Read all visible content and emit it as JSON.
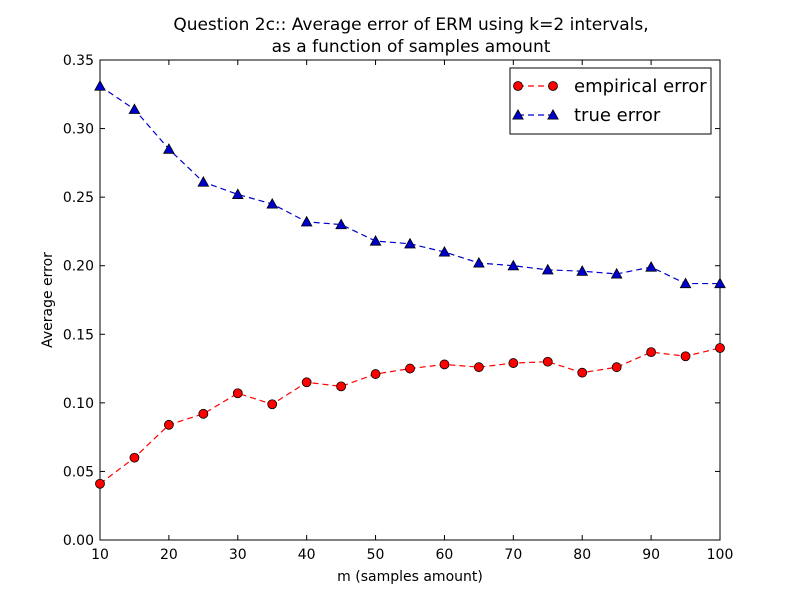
{
  "chart_data": {
    "type": "line",
    "title": [
      "Question 2c:: Average error of ERM using k=2 intervals,",
      "as a function of samples amount"
    ],
    "xlabel": "m (samples amount)",
    "ylabel": "Average error",
    "xlim": [
      10,
      100
    ],
    "ylim": [
      0.0,
      0.35
    ],
    "xticks": [
      10,
      20,
      30,
      40,
      50,
      60,
      70,
      80,
      90,
      100
    ],
    "xtick_labels": [
      "10",
      "20",
      "30",
      "40",
      "50",
      "60",
      "70",
      "80",
      "90",
      "100"
    ],
    "yticks": [
      0.0,
      0.05,
      0.1,
      0.15,
      0.2,
      0.25,
      0.3,
      0.35
    ],
    "ytick_labels": [
      "0.00",
      "0.05",
      "0.10",
      "0.15",
      "0.20",
      "0.25",
      "0.30",
      "0.35"
    ],
    "grid": false,
    "legend_position": "top-right",
    "x": [
      10,
      15,
      20,
      25,
      30,
      35,
      40,
      45,
      50,
      55,
      60,
      65,
      70,
      75,
      80,
      85,
      90,
      95,
      100
    ],
    "series": [
      {
        "name": "empirical error",
        "color": "#ff0000",
        "line_style": "dashed",
        "marker": "circle",
        "values": [
          0.041,
          0.06,
          0.084,
          0.092,
          0.107,
          0.099,
          0.115,
          0.112,
          0.121,
          0.125,
          0.128,
          0.126,
          0.129,
          0.13,
          0.122,
          0.126,
          0.137,
          0.134,
          0.14
        ]
      },
      {
        "name": "true error",
        "color": "#0000cc",
        "line_style": "dashed",
        "marker": "triangle",
        "values": [
          0.331,
          0.314,
          0.285,
          0.261,
          0.252,
          0.245,
          0.232,
          0.23,
          0.218,
          0.216,
          0.21,
          0.202,
          0.2,
          0.197,
          0.196,
          0.194,
          0.199,
          0.187,
          0.187
        ]
      }
    ]
  }
}
